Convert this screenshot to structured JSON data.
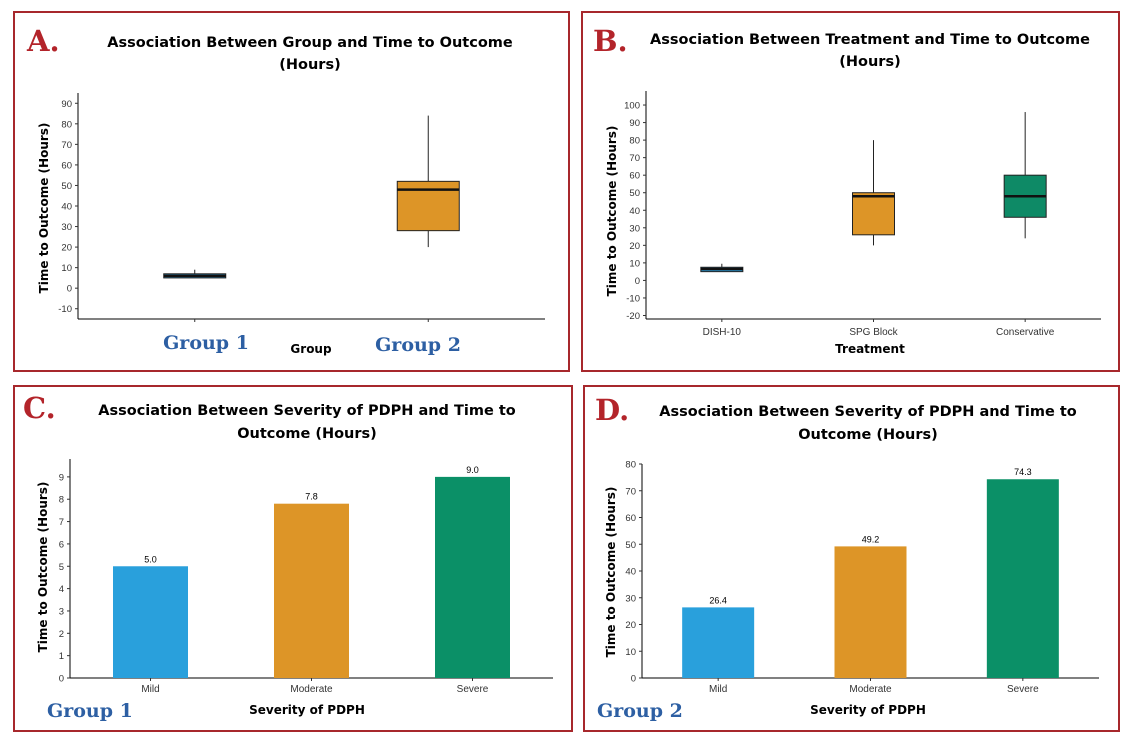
{
  "chart_data": [
    {
      "type": "box",
      "panel_letter": "A.",
      "title_lines": [
        "Association Between Group and Time to Outcome",
        "(Hours)"
      ],
      "xlabel": "Group",
      "ylabel": "Time to Outcome (Hours)",
      "ylim": [
        -15,
        95
      ],
      "yticks": [
        -10,
        0,
        10,
        20,
        30,
        40,
        50,
        60,
        70,
        80,
        90
      ],
      "categories": [
        "Group 1",
        "Group 2"
      ],
      "boxes": [
        {
          "label": "Group 1",
          "min": 5,
          "q1": 5,
          "median": 6,
          "q3": 7,
          "max": 9,
          "color": "#2a8fc4"
        },
        {
          "label": "Group 2",
          "min": 20,
          "q1": 28,
          "median": 48,
          "q3": 52,
          "max": 84,
          "color": "#dd9527"
        }
      ]
    },
    {
      "type": "box",
      "panel_letter": "B.",
      "title_lines": [
        "Association Between Treatment and Time to Outcome",
        "(Hours)"
      ],
      "xlabel": "Treatment",
      "ylabel": "Time to Outcome (Hours)",
      "ylim": [
        -22,
        108
      ],
      "yticks": [
        -20,
        -10,
        0,
        10,
        20,
        30,
        40,
        50,
        60,
        70,
        80,
        90,
        100
      ],
      "categories": [
        "DISH-10",
        "SPG Block",
        "Conservative"
      ],
      "boxes": [
        {
          "label": "DISH-10",
          "min": 5,
          "q1": 5,
          "median": 6.5,
          "q3": 7.5,
          "max": 9.5,
          "color": "#2a8fc4"
        },
        {
          "label": "SPG Block",
          "min": 20,
          "q1": 26,
          "median": 48,
          "q3": 50,
          "max": 80,
          "color": "#dd9527"
        },
        {
          "label": "Conservative",
          "min": 24,
          "q1": 36,
          "median": 48,
          "q3": 60,
          "max": 96,
          "color": "#0e8a66"
        }
      ]
    },
    {
      "type": "bar",
      "panel_letter": "C.",
      "group_label": "Group 1",
      "title_lines": [
        "Association Between Severity of PDPH and Time to",
        "Outcome (Hours)"
      ],
      "xlabel": "Severity of PDPH",
      "ylabel": "Time to Outcome (Hours)",
      "ylim": [
        0,
        9.8
      ],
      "yticks": [
        0,
        1,
        2,
        3,
        4,
        5,
        6,
        7,
        8,
        9
      ],
      "categories": [
        "Mild",
        "Moderate",
        "Severe"
      ],
      "values": [
        5.0,
        7.8,
        9.0
      ],
      "value_labels": [
        "5.0",
        "7.8",
        "9.0"
      ],
      "colors": [
        "#29a0dc",
        "#dd9527",
        "#0b9067"
      ]
    },
    {
      "type": "bar",
      "panel_letter": "D.",
      "group_label": "Group 2",
      "title_lines": [
        "Association Between Severity of PDPH and Time to",
        "Outcome (Hours)"
      ],
      "xlabel": "Severity of PDPH",
      "ylabel": "Time to Outcome (Hours)",
      "ylim": [
        0,
        80
      ],
      "yticks": [
        0,
        10,
        20,
        30,
        40,
        50,
        60,
        70,
        80
      ],
      "categories": [
        "Mild",
        "Moderate",
        "Severe"
      ],
      "values": [
        26.4,
        49.2,
        74.3
      ],
      "value_labels": [
        "26.4",
        "49.2",
        "74.3"
      ],
      "colors": [
        "#29a0dc",
        "#dd9527",
        "#0b9067"
      ]
    }
  ]
}
